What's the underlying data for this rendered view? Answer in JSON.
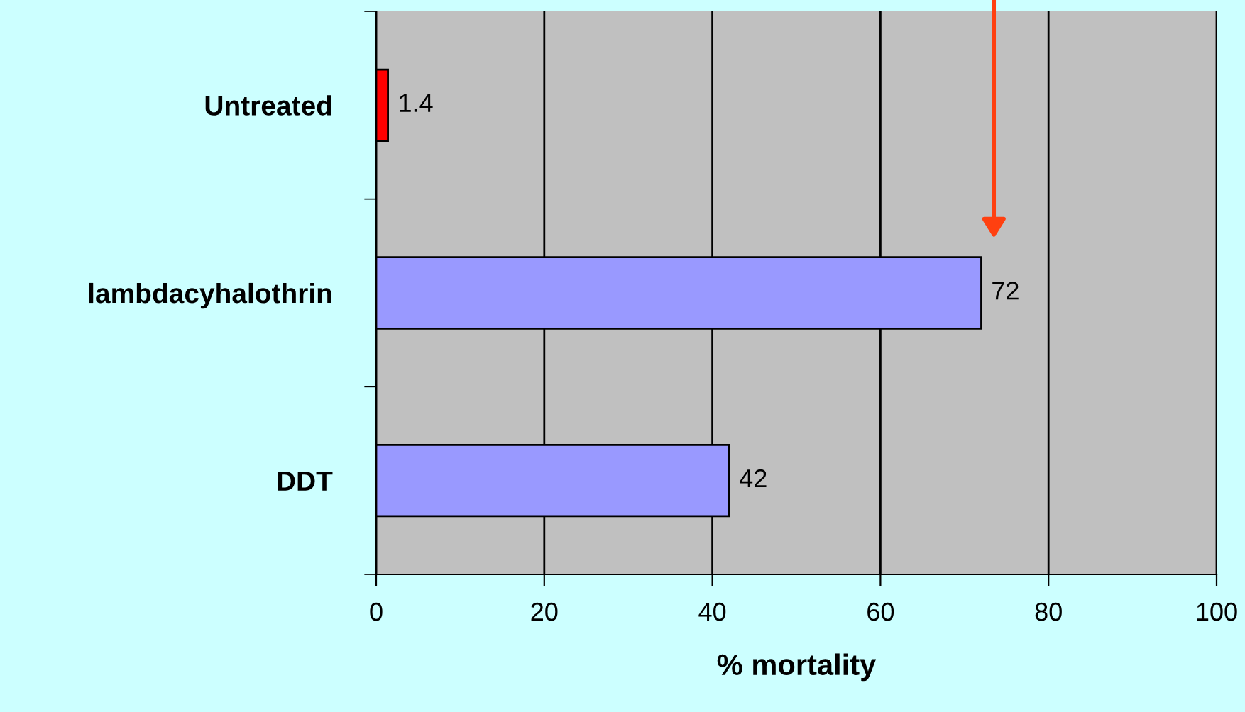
{
  "chart_data": {
    "type": "bar",
    "orientation": "horizontal",
    "xlabel": "% mortality",
    "categories": [
      "Untreated",
      "lambdacyhalothrin",
      "DDT"
    ],
    "values": [
      1.4,
      72,
      42
    ],
    "colors": [
      "#ff0000",
      "#9999ff",
      "#9999ff"
    ],
    "xlim": [
      0,
      100
    ],
    "xticks": [
      0,
      20,
      40,
      60,
      80,
      100
    ],
    "grid": "x",
    "data_labels": true
  }
}
